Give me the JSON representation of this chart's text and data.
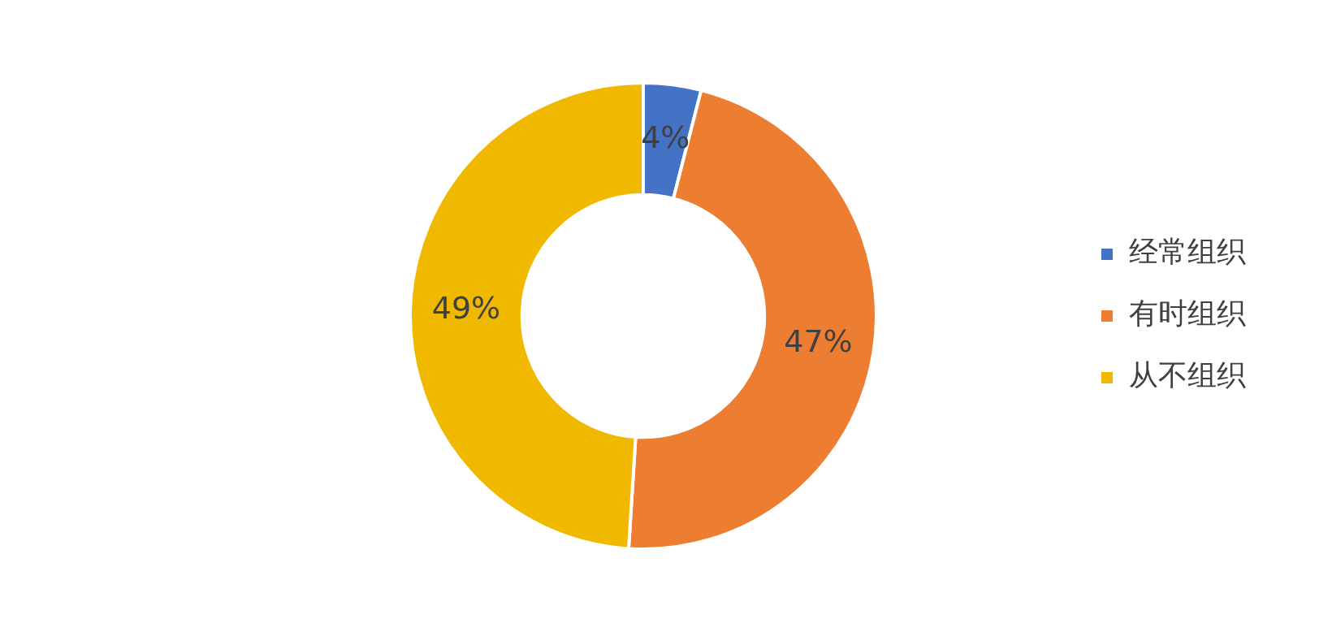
{
  "chart_data": {
    "type": "donut",
    "categories": [
      "经常组织",
      "有时组织",
      "从不组织"
    ],
    "values": [
      4,
      47,
      49
    ],
    "colors": [
      "#4472c4",
      "#ed7d31",
      "#f0b900"
    ],
    "value_labels": [
      "4%",
      "47%",
      "49%"
    ],
    "legend": "right"
  }
}
